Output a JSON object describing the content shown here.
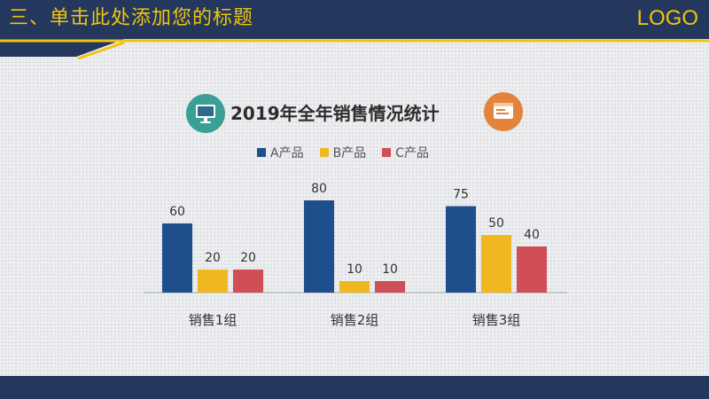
{
  "header": {
    "title": "三、单击此处添加您的标题",
    "logo": "LOGO"
  },
  "colors": {
    "navy": "#24375d",
    "yellow_accent": "#f1c40f",
    "series_a": "#1f4e8c",
    "series_b": "#f0b81f",
    "series_c": "#d04e55",
    "icon_teal": "#3a9f94",
    "icon_orange": "#e4833a"
  },
  "icons": {
    "left": "monitor-icon",
    "right": "browser-window-icon"
  },
  "chart_data": {
    "type": "bar",
    "title": "2019年全年销售情况统计",
    "categories": [
      "销售1组",
      "销售2组",
      "销售3组"
    ],
    "series": [
      {
        "name": "A产品",
        "values": [
          60,
          80,
          75
        ]
      },
      {
        "name": "B产品",
        "values": [
          20,
          10,
          50
        ]
      },
      {
        "name": "C产品",
        "values": [
          20,
          10,
          40
        ]
      }
    ],
    "ylim": [
      0,
      100
    ],
    "grid": false,
    "legend_position": "top-center",
    "xlabel": "",
    "ylabel": ""
  }
}
